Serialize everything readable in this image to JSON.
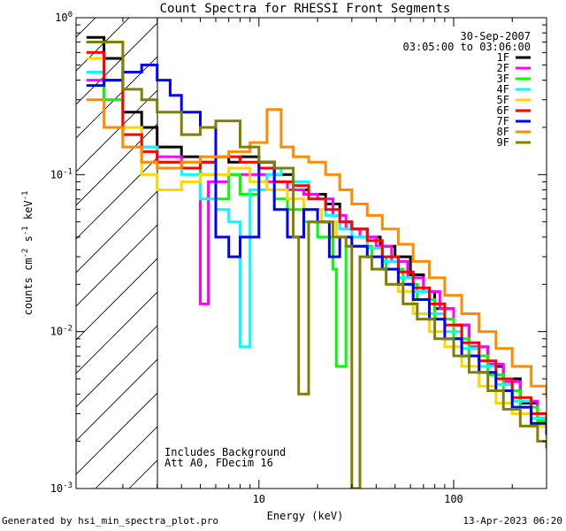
{
  "footer": {
    "left": "Generated by hsi_min_spectra_plot.pro",
    "right": "13-Apr-2023 06:20"
  },
  "chart_data": {
    "type": "line",
    "title": "Count Spectra for RHESSI Front Segments",
    "xlabel": "Energy (keV)",
    "ylabel_main": "counts cm",
    "ylabel_sup1": "-2",
    "ylabel_mid1": " s",
    "ylabel_sup2": "-1",
    "ylabel_mid2": " keV",
    "ylabel_sup3": "-1",
    "xscale": "log",
    "yscale": "log",
    "xlim": [
      1.15,
      300
    ],
    "ylim": [
      0.001,
      1.0
    ],
    "x_tick_labels": [
      {
        "value": 10,
        "label": "10"
      },
      {
        "value": 100,
        "label": "100"
      }
    ],
    "y_tick_labels": [
      {
        "value": 1.0,
        "base": "10",
        "exp": "0"
      },
      {
        "value": 0.1,
        "base": "10",
        "exp": "-1"
      },
      {
        "value": 0.01,
        "base": "10",
        "exp": "-2"
      },
      {
        "value": 0.001,
        "base": "10",
        "exp": "-3"
      }
    ],
    "shaded_region": {
      "x_min": 1.15,
      "x_max": 3.0,
      "pattern": "diagonal-hatch"
    },
    "date_label": "30-Sep-2007",
    "time_label": "03:05:00 to 03:06:00",
    "annotations": [
      "Includes Background",
      "Att A0, FDecim 16"
    ],
    "legend_position": "top-right",
    "grid": false,
    "series": [
      {
        "name": "1F",
        "color": "#000000",
        "points": [
          [
            1.3,
            0.75
          ],
          [
            1.6,
            0.55
          ],
          [
            2.0,
            0.25
          ],
          [
            2.5,
            0.2
          ],
          [
            3,
            0.15
          ],
          [
            4,
            0.13
          ],
          [
            5,
            0.12
          ],
          [
            6,
            0.13
          ],
          [
            7,
            0.12
          ],
          [
            8,
            0.13
          ],
          [
            10,
            0.12
          ],
          [
            12,
            0.1
          ],
          [
            15,
            0.08
          ],
          [
            18,
            0.075
          ],
          [
            22,
            0.065
          ],
          [
            26,
            0.05
          ],
          [
            30,
            0.045
          ],
          [
            36,
            0.04
          ],
          [
            42,
            0.035
          ],
          [
            50,
            0.03
          ],
          [
            60,
            0.023
          ],
          [
            70,
            0.018
          ],
          [
            80,
            0.014
          ],
          [
            100,
            0.011
          ],
          [
            120,
            0.008
          ],
          [
            150,
            0.006
          ],
          [
            180,
            0.005
          ],
          [
            220,
            0.0035
          ],
          [
            270,
            0.0028
          ],
          [
            300,
            0.0025
          ]
        ]
      },
      {
        "name": "2F",
        "color": "#ff00ff",
        "points": [
          [
            1.3,
            0.4
          ],
          [
            1.6,
            0.3
          ],
          [
            2.0,
            0.2
          ],
          [
            2.5,
            0.15
          ],
          [
            3,
            0.13
          ],
          [
            4,
            0.11
          ],
          [
            5,
            0.015
          ],
          [
            5.5,
            0.09
          ],
          [
            7,
            0.1
          ],
          [
            9,
            0.1
          ],
          [
            11,
            0.09
          ],
          [
            14,
            0.08
          ],
          [
            17,
            0.075
          ],
          [
            20,
            0.07
          ],
          [
            24,
            0.055
          ],
          [
            28,
            0.045
          ],
          [
            33,
            0.04
          ],
          [
            40,
            0.035
          ],
          [
            48,
            0.028
          ],
          [
            58,
            0.022
          ],
          [
            70,
            0.018
          ],
          [
            85,
            0.014
          ],
          [
            100,
            0.011
          ],
          [
            120,
            0.008
          ],
          [
            150,
            0.0062
          ],
          [
            180,
            0.0048
          ],
          [
            220,
            0.0036
          ],
          [
            270,
            0.0028
          ],
          [
            300,
            0.0024
          ]
        ]
      },
      {
        "name": "3F",
        "color": "#00ff00",
        "points": [
          [
            1.3,
            0.55
          ],
          [
            1.6,
            0.3
          ],
          [
            2.0,
            0.15
          ],
          [
            2.5,
            0.12
          ],
          [
            3,
            0.12
          ],
          [
            4,
            0.12
          ],
          [
            5,
            0.1
          ],
          [
            6,
            0.07
          ],
          [
            7,
            0.1
          ],
          [
            8,
            0.075
          ],
          [
            10,
            0.08
          ],
          [
            12,
            0.07
          ],
          [
            14,
            0.06
          ],
          [
            17,
            0.05
          ],
          [
            20,
            0.04
          ],
          [
            24,
            0.025
          ],
          [
            25,
            0.006
          ],
          [
            28,
            0.035
          ],
          [
            33,
            0.035
          ],
          [
            38,
            0.03
          ],
          [
            45,
            0.025
          ],
          [
            55,
            0.02
          ],
          [
            65,
            0.016
          ],
          [
            80,
            0.012
          ],
          [
            100,
            0.009
          ],
          [
            120,
            0.007
          ],
          [
            150,
            0.0053
          ],
          [
            180,
            0.0042
          ],
          [
            220,
            0.0033
          ],
          [
            270,
            0.0027
          ],
          [
            300,
            0.0023
          ]
        ]
      },
      {
        "name": "4F",
        "color": "#00ffff",
        "points": [
          [
            1.3,
            0.45
          ],
          [
            1.6,
            0.4
          ],
          [
            2.0,
            0.2
          ],
          [
            2.5,
            0.15
          ],
          [
            3,
            0.12
          ],
          [
            4,
            0.1
          ],
          [
            5,
            0.07
          ],
          [
            6,
            0.06
          ],
          [
            7,
            0.05
          ],
          [
            8,
            0.008
          ],
          [
            9,
            0.08
          ],
          [
            11,
            0.1
          ],
          [
            13,
            0.11
          ],
          [
            15,
            0.09
          ],
          [
            18,
            0.07
          ],
          [
            22,
            0.055
          ],
          [
            26,
            0.045
          ],
          [
            30,
            0.04
          ],
          [
            36,
            0.034
          ],
          [
            43,
            0.028
          ],
          [
            52,
            0.022
          ],
          [
            62,
            0.018
          ],
          [
            75,
            0.013
          ],
          [
            90,
            0.01
          ],
          [
            110,
            0.0078
          ],
          [
            135,
            0.006
          ],
          [
            165,
            0.0046
          ],
          [
            200,
            0.0036
          ],
          [
            250,
            0.0028
          ],
          [
            300,
            0.0024
          ]
        ]
      },
      {
        "name": "5F",
        "color": "#ffd700",
        "points": [
          [
            1.3,
            0.55
          ],
          [
            1.6,
            0.4
          ],
          [
            2.0,
            0.2
          ],
          [
            2.5,
            0.1
          ],
          [
            3,
            0.08
          ],
          [
            4,
            0.09
          ],
          [
            5,
            0.1
          ],
          [
            7,
            0.11
          ],
          [
            9,
            0.09
          ],
          [
            11,
            0.08
          ],
          [
            14,
            0.07
          ],
          [
            17,
            0.06
          ],
          [
            21,
            0.05
          ],
          [
            25,
            0.04
          ],
          [
            30,
            0.035
          ],
          [
            36,
            0.03
          ],
          [
            43,
            0.025
          ],
          [
            52,
            0.018
          ],
          [
            62,
            0.013
          ],
          [
            75,
            0.01
          ],
          [
            90,
            0.008
          ],
          [
            110,
            0.006
          ],
          [
            135,
            0.0045
          ],
          [
            165,
            0.0035
          ],
          [
            200,
            0.003
          ],
          [
            250,
            0.0025
          ],
          [
            300,
            0.002
          ]
        ]
      },
      {
        "name": "6F",
        "color": "#ff0000",
        "points": [
          [
            1.3,
            0.6
          ],
          [
            1.6,
            0.4
          ],
          [
            2.0,
            0.18
          ],
          [
            2.5,
            0.14
          ],
          [
            3,
            0.12
          ],
          [
            4,
            0.11
          ],
          [
            5,
            0.12
          ],
          [
            6,
            0.13
          ],
          [
            8,
            0.12
          ],
          [
            10,
            0.11
          ],
          [
            12,
            0.09
          ],
          [
            15,
            0.085
          ],
          [
            18,
            0.07
          ],
          [
            22,
            0.06
          ],
          [
            26,
            0.05
          ],
          [
            30,
            0.045
          ],
          [
            36,
            0.038
          ],
          [
            43,
            0.03
          ],
          [
            52,
            0.024
          ],
          [
            62,
            0.019
          ],
          [
            75,
            0.015
          ],
          [
            90,
            0.011
          ],
          [
            110,
            0.0085
          ],
          [
            135,
            0.0065
          ],
          [
            165,
            0.005
          ],
          [
            200,
            0.0038
          ],
          [
            250,
            0.003
          ],
          [
            300,
            0.0025
          ]
        ]
      },
      {
        "name": "7F",
        "color": "#0000ff",
        "points": [
          [
            1.3,
            0.37
          ],
          [
            1.6,
            0.4
          ],
          [
            2.0,
            0.45
          ],
          [
            2.5,
            0.5
          ],
          [
            3,
            0.4
          ],
          [
            3.5,
            0.32
          ],
          [
            4,
            0.25
          ],
          [
            5,
            0.2
          ],
          [
            6,
            0.04
          ],
          [
            7,
            0.03
          ],
          [
            8,
            0.04
          ],
          [
            10,
            0.12
          ],
          [
            12,
            0.06
          ],
          [
            14,
            0.04
          ],
          [
            17,
            0.06
          ],
          [
            20,
            0.05
          ],
          [
            23,
            0.03
          ],
          [
            26,
            0.04
          ],
          [
            30,
            0.035
          ],
          [
            36,
            0.03
          ],
          [
            43,
            0.025
          ],
          [
            52,
            0.02
          ],
          [
            62,
            0.016
          ],
          [
            75,
            0.012
          ],
          [
            90,
            0.009
          ],
          [
            110,
            0.007
          ],
          [
            135,
            0.0055
          ],
          [
            165,
            0.0042
          ],
          [
            200,
            0.0033
          ],
          [
            250,
            0.0026
          ],
          [
            300,
            0.0022
          ]
        ]
      },
      {
        "name": "8F",
        "color": "#ff8c00",
        "points": [
          [
            1.3,
            0.3
          ],
          [
            1.6,
            0.2
          ],
          [
            2.0,
            0.15
          ],
          [
            2.5,
            0.12
          ],
          [
            3,
            0.11
          ],
          [
            4,
            0.12
          ],
          [
            5,
            0.13
          ],
          [
            7,
            0.14
          ],
          [
            9,
            0.16
          ],
          [
            11,
            0.26
          ],
          [
            13,
            0.15
          ],
          [
            15,
            0.13
          ],
          [
            18,
            0.12
          ],
          [
            22,
            0.1
          ],
          [
            26,
            0.08
          ],
          [
            30,
            0.065
          ],
          [
            36,
            0.055
          ],
          [
            43,
            0.045
          ],
          [
            52,
            0.036
          ],
          [
            62,
            0.028
          ],
          [
            75,
            0.022
          ],
          [
            90,
            0.017
          ],
          [
            110,
            0.013
          ],
          [
            135,
            0.01
          ],
          [
            165,
            0.0078
          ],
          [
            200,
            0.006
          ],
          [
            250,
            0.0045
          ],
          [
            300,
            0.0038
          ]
        ]
      },
      {
        "name": "9F",
        "color": "#808000",
        "points": [
          [
            1.3,
            0.7
          ],
          [
            1.6,
            0.7
          ],
          [
            2.0,
            0.35
          ],
          [
            2.5,
            0.3
          ],
          [
            3,
            0.25
          ],
          [
            4,
            0.18
          ],
          [
            5,
            0.2
          ],
          [
            6,
            0.22
          ],
          [
            8,
            0.15
          ],
          [
            10,
            0.12
          ],
          [
            12,
            0.11
          ],
          [
            15,
            0.04
          ],
          [
            16,
            0.004
          ],
          [
            18,
            0.05
          ],
          [
            21,
            0.05
          ],
          [
            24,
            0.04
          ],
          [
            28,
            0.035
          ],
          [
            30,
            0.001
          ],
          [
            33,
            0.03
          ],
          [
            38,
            0.025
          ],
          [
            45,
            0.02
          ],
          [
            55,
            0.015
          ],
          [
            65,
            0.012
          ],
          [
            80,
            0.009
          ],
          [
            100,
            0.007
          ],
          [
            120,
            0.0055
          ],
          [
            150,
            0.0042
          ],
          [
            180,
            0.0032
          ],
          [
            220,
            0.0025
          ],
          [
            270,
            0.002
          ],
          [
            300,
            0.0018
          ]
        ]
      }
    ]
  }
}
